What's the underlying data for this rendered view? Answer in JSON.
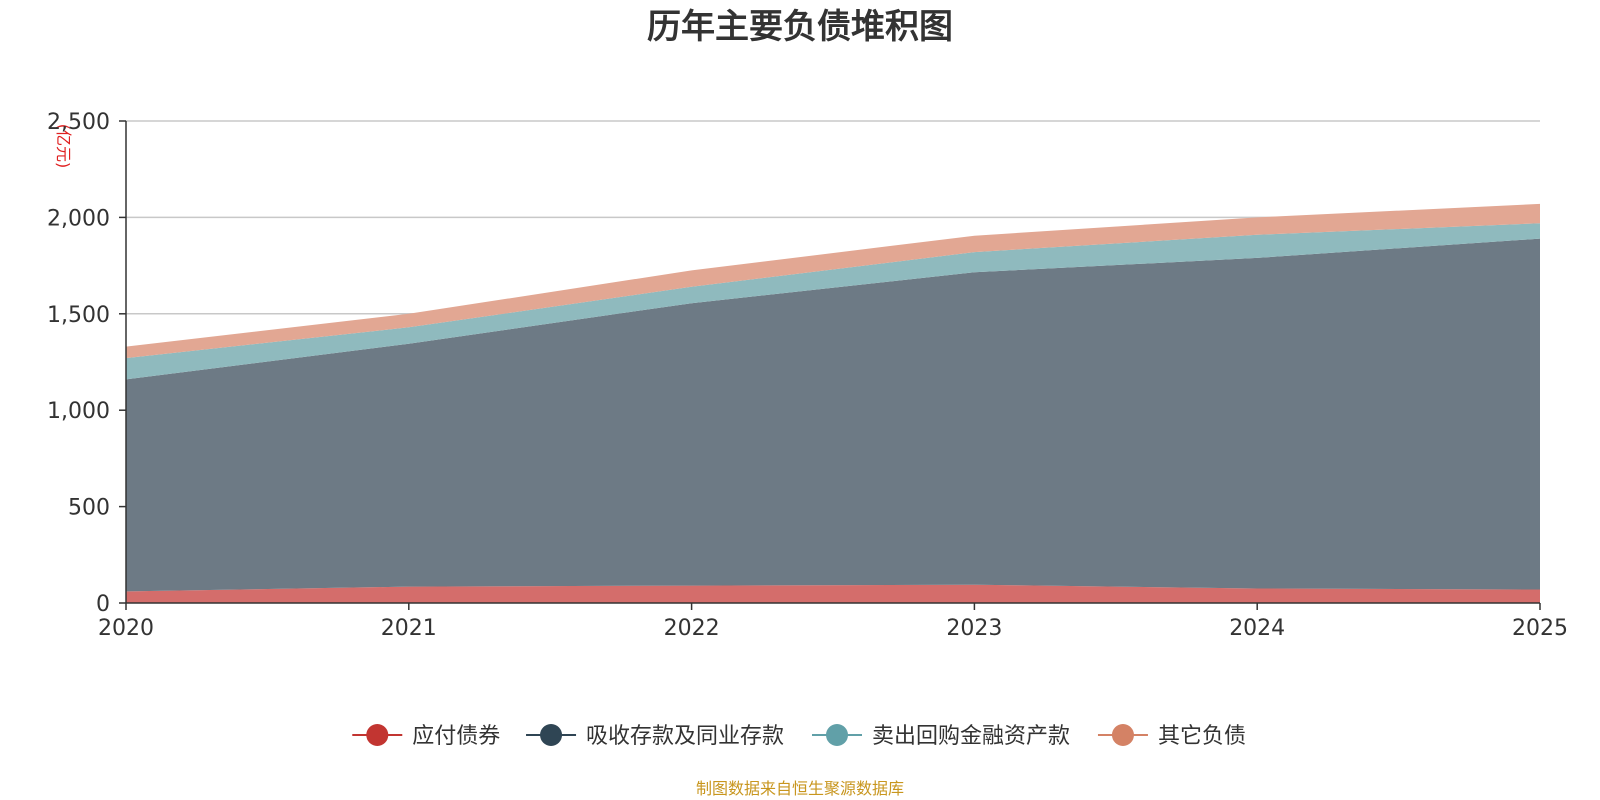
{
  "chart_data": {
    "type": "area",
    "stacked": true,
    "title": "历年主要负债堆积图",
    "unit_label": "(亿元)",
    "x": [
      "2020",
      "2021",
      "2022",
      "2023",
      "2024",
      "2025"
    ],
    "ylim": [
      0,
      2500
    ],
    "yticks": [
      0,
      500,
      1000,
      1500,
      2000,
      2500
    ],
    "ytick_labels": [
      "0",
      "500",
      "1,000",
      "1,500",
      "2,000",
      "2,500"
    ],
    "grid": true,
    "legend_position": "bottom",
    "series": [
      {
        "name": "应付债券",
        "color": "#c23531",
        "fill": "#d46d6b",
        "values": [
          60,
          85,
          90,
          95,
          75,
          70
        ]
      },
      {
        "name": "吸收存款及同业存款",
        "color": "#2f4554",
        "fill": "#6d7a85",
        "values": [
          1100,
          1260,
          1465,
          1620,
          1715,
          1820
        ]
      },
      {
        "name": "卖出回购金融资产款",
        "color": "#61a0a8",
        "fill": "#8fbabe",
        "values": [
          110,
          85,
          85,
          105,
          120,
          80
        ]
      },
      {
        "name": "其它负债",
        "color": "#d48265",
        "fill": "#e2a793",
        "values": [
          60,
          70,
          85,
          85,
          90,
          100
        ]
      }
    ],
    "source": "制图数据来自恒生聚源数据库"
  }
}
